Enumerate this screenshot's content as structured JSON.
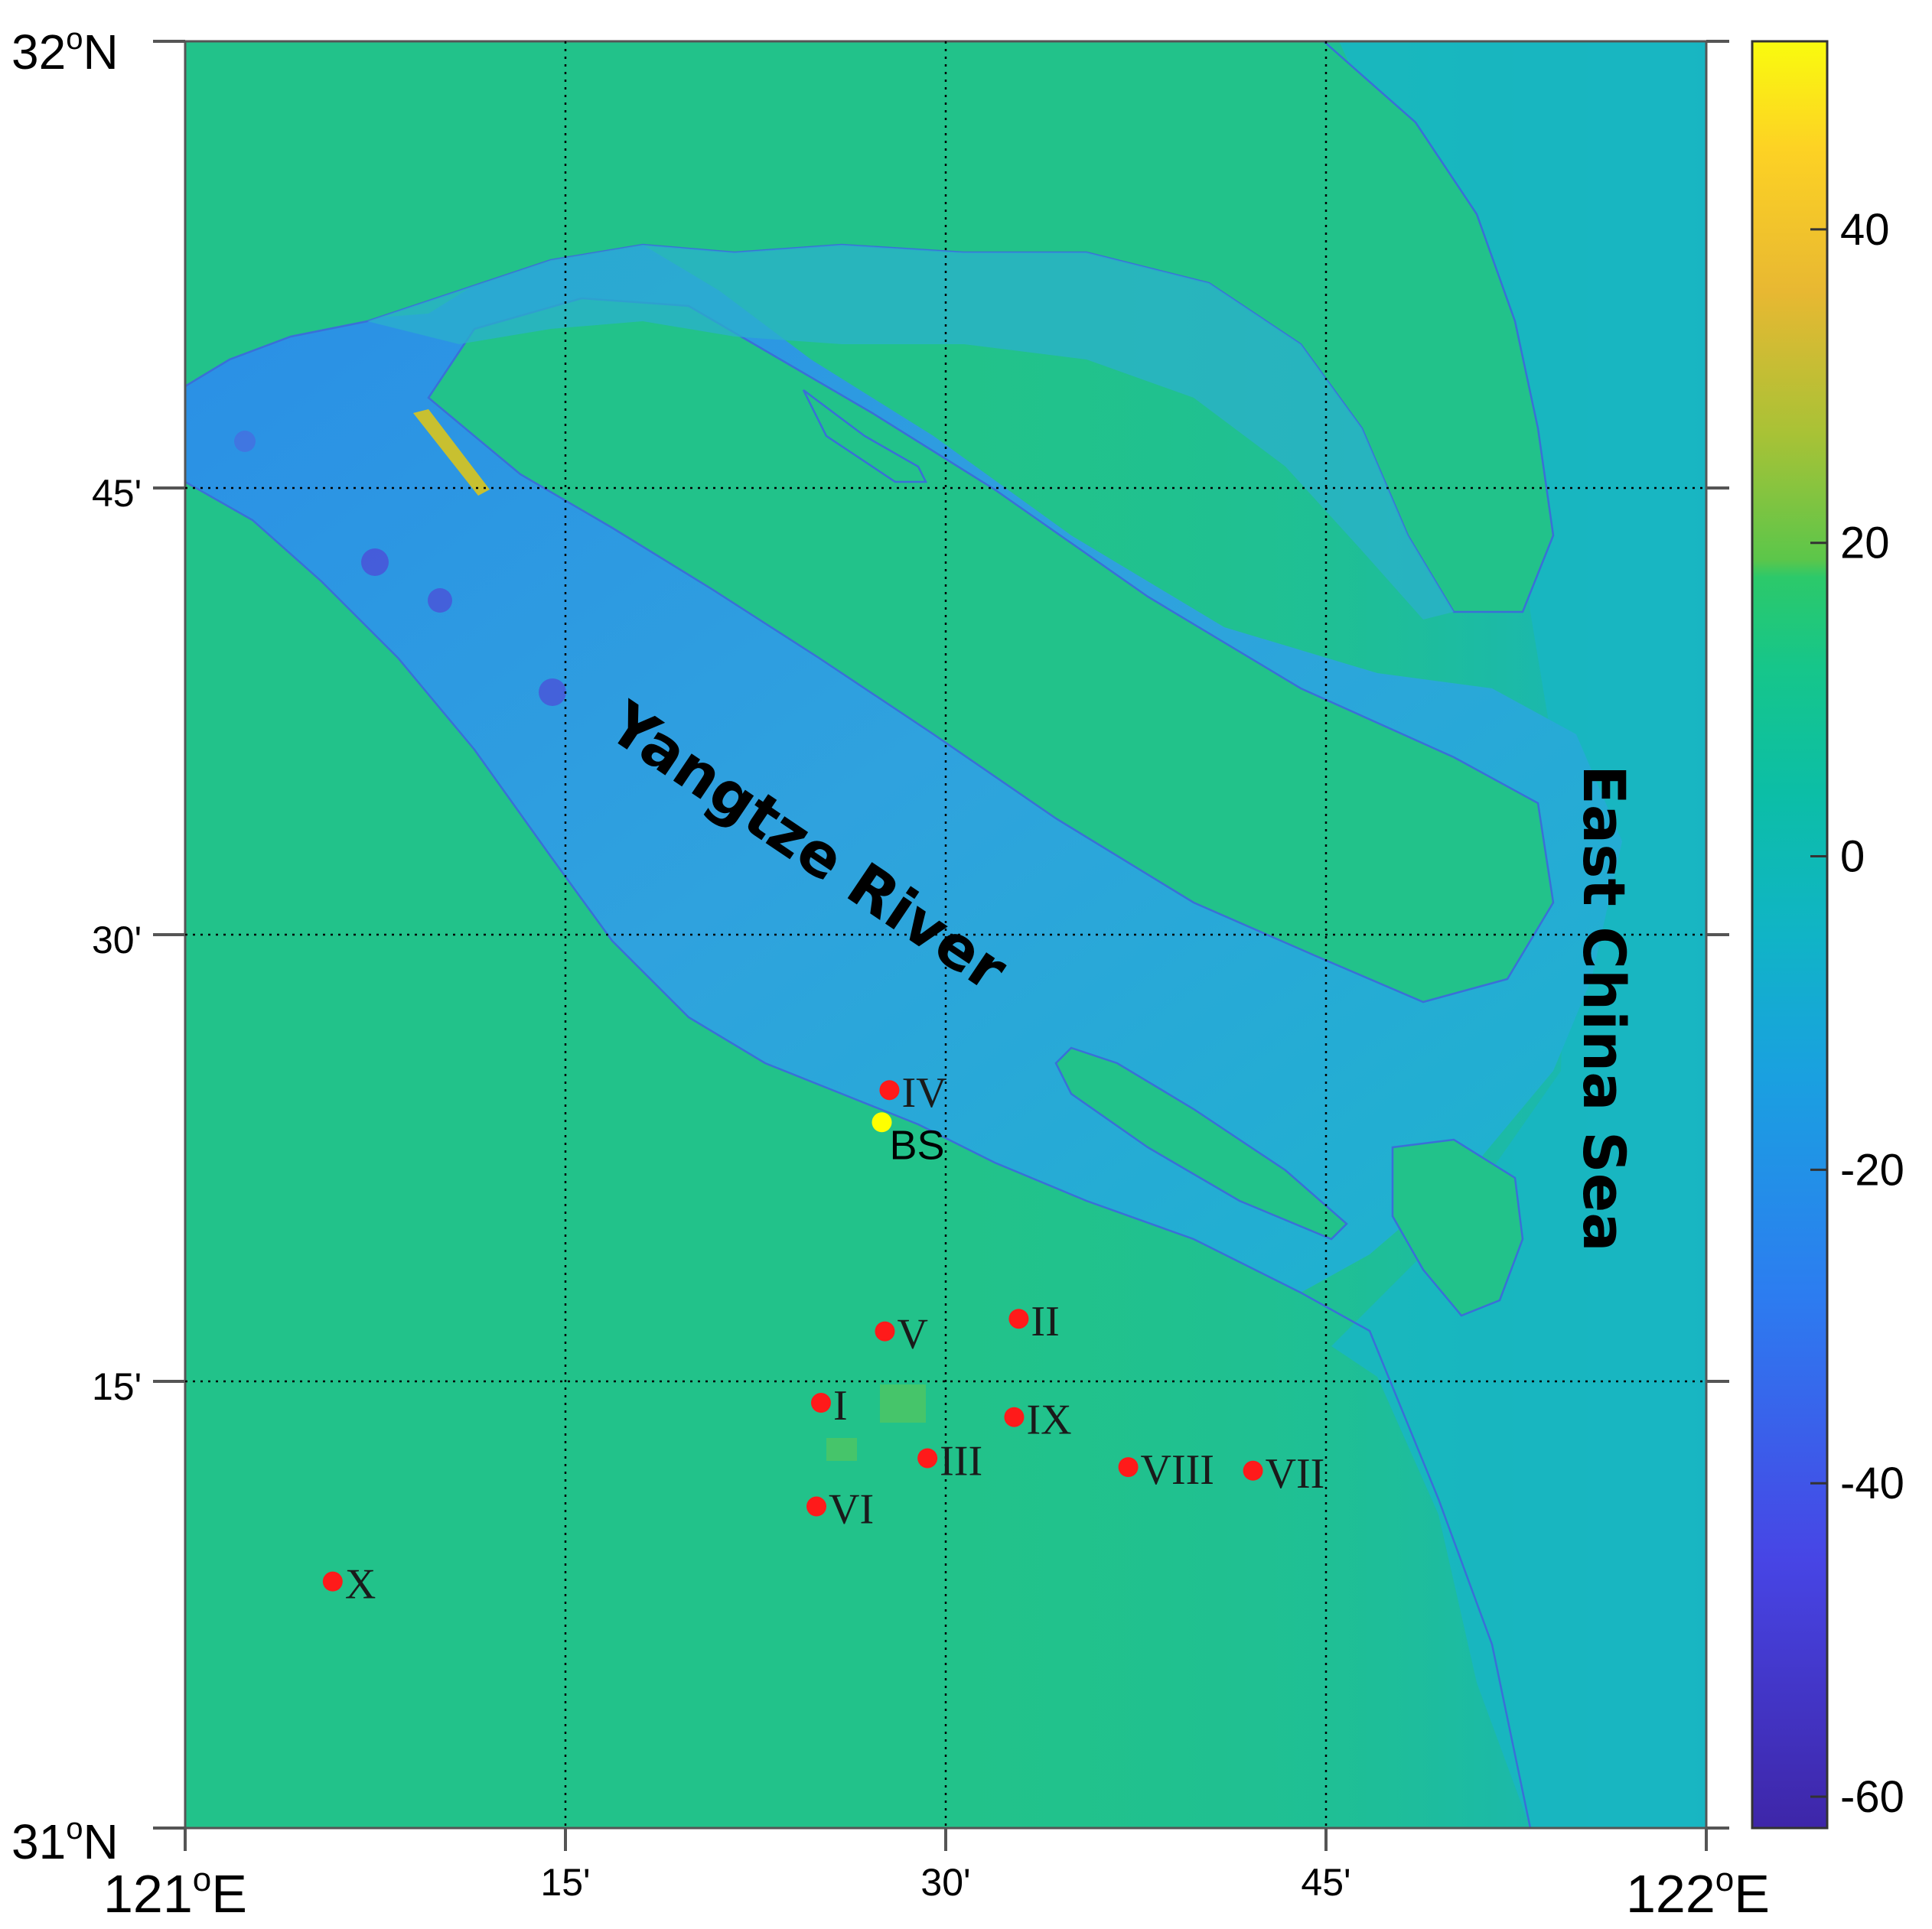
{
  "map": {
    "latitude_labels": [
      {
        "deg": "32",
        "sup": "o",
        "suffix": "N"
      },
      {
        "text": "45'"
      },
      {
        "text": "30'"
      },
      {
        "text": "15'"
      },
      {
        "deg": "31",
        "sup": "o",
        "suffix": "N"
      }
    ],
    "longitude_labels": [
      {
        "deg": "121",
        "sup": "o",
        "suffix": "E"
      },
      {
        "text": "15'"
      },
      {
        "text": "30'"
      },
      {
        "text": "45'"
      },
      {
        "deg": "122",
        "sup": "o",
        "suffix": "E"
      }
    ],
    "places": {
      "river": "Yangtze River",
      "sea": "East China Sea"
    },
    "sites": [
      {
        "id": "IV",
        "label": "IV",
        "lon": 121.463,
        "lat": 31.413,
        "color": "#ff1a1a"
      },
      {
        "id": "BS",
        "label": "BS",
        "lon": 121.458,
        "lat": 31.395,
        "color": "#ffff00"
      },
      {
        "id": "V",
        "label": "V",
        "lon": 121.46,
        "lat": 31.278,
        "color": "#ff1a1a"
      },
      {
        "id": "II",
        "label": "II",
        "lon": 121.548,
        "lat": 31.285,
        "color": "#ff1a1a"
      },
      {
        "id": "I",
        "label": "I",
        "lon": 121.418,
        "lat": 31.238,
        "color": "#ff1a1a"
      },
      {
        "id": "IX",
        "label": "IX",
        "lon": 121.545,
        "lat": 31.23,
        "color": "#ff1a1a"
      },
      {
        "id": "III",
        "label": "III",
        "lon": 121.488,
        "lat": 31.207,
        "color": "#ff1a1a"
      },
      {
        "id": "VIII",
        "label": "VIII",
        "lon": 121.62,
        "lat": 31.202,
        "color": "#ff1a1a"
      },
      {
        "id": "VII",
        "label": "VII",
        "lon": 121.702,
        "lat": 31.2,
        "color": "#ff1a1a"
      },
      {
        "id": "VI",
        "label": "VI",
        "lon": 121.415,
        "lat": 31.18,
        "color": "#ff1a1a"
      },
      {
        "id": "X",
        "label": "X",
        "lon": 121.097,
        "lat": 31.138,
        "color": "#ff1a1a"
      }
    ]
  },
  "colorbar": {
    "min": -62,
    "max": 52,
    "ticks": [
      "40",
      "20",
      "0",
      "-20",
      "-40",
      "-60"
    ],
    "tick_values": [
      40,
      20,
      0,
      -20,
      -40,
      -60
    ]
  },
  "colors": {
    "land": "#22c28a",
    "river": "#2ea0dc",
    "sea": "#1cb8c8",
    "coastline": "#3a6fd8"
  }
}
